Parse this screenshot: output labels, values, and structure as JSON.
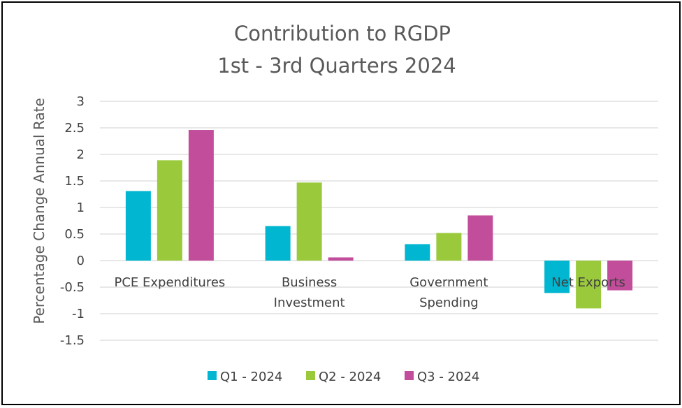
{
  "chart_data": {
    "type": "bar",
    "title": [
      "Contribution to RGDP",
      "1st - 3rd Quarters 2024"
    ],
    "ylabel": "Percentage Change Annual Rate",
    "xlabel": "",
    "ylim": [
      -1.5,
      3
    ],
    "yticks": [
      3,
      2.5,
      2,
      1.5,
      1,
      0.5,
      0,
      -0.5,
      -1,
      -1.5
    ],
    "ytick_labels": [
      "3",
      "2.5",
      "2",
      "1.5",
      "1",
      "0.5",
      "0",
      "-0.5",
      "-1",
      "-1.5"
    ],
    "grid": true,
    "legend_position": "bottom",
    "categories": [
      [
        "PCE Expenditures"
      ],
      [
        "Business",
        "Investment"
      ],
      [
        "Government",
        "Spending"
      ],
      [
        "Net Exports"
      ]
    ],
    "series": [
      {
        "name": "Q1 - 2024",
        "color": "#00B6D0",
        "values": [
          1.31,
          0.65,
          0.31,
          -0.61
        ]
      },
      {
        "name": "Q2 - 2024",
        "color": "#9ACA3C",
        "values": [
          1.89,
          1.47,
          0.52,
          -0.9
        ]
      },
      {
        "name": "Q3 - 2024",
        "color": "#C24D9B",
        "values": [
          2.46,
          0.06,
          0.85,
          -0.56
        ]
      }
    ]
  }
}
